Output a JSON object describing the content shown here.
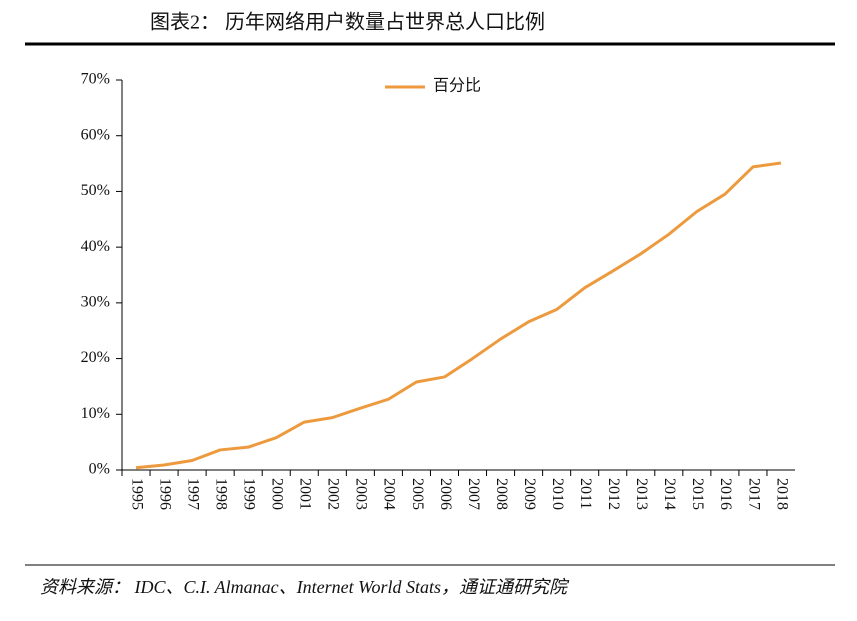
{
  "title": "图表2：  历年网络用户数量占世界总人口比例",
  "source": "资料来源：  IDC、C.I. Almanac、Internet World Stats，通证通研究院",
  "chart_data": {
    "type": "line",
    "categories": [
      "1995",
      "1996",
      "1997",
      "1998",
      "1999",
      "2000",
      "2001",
      "2002",
      "2003",
      "2004",
      "2005",
      "2006",
      "2007",
      "2008",
      "2009",
      "2010",
      "2011",
      "2012",
      "2013",
      "2014",
      "2015",
      "2016",
      "2017",
      "2018"
    ],
    "series": [
      {
        "name": "百分比",
        "color": "#ed9a3f",
        "values": [
          0.4,
          0.9,
          1.7,
          3.6,
          4.1,
          5.8,
          8.6,
          9.4,
          11.1,
          12.7,
          15.8,
          16.7,
          20.0,
          23.5,
          26.6,
          28.8,
          32.7,
          35.7,
          38.8,
          42.3,
          46.4,
          49.5,
          54.4,
          55.1
        ]
      }
    ],
    "ylim": [
      0,
      70
    ],
    "yticks": [
      {
        "value": 0,
        "label": "0%"
      },
      {
        "value": 10,
        "label": "10%"
      },
      {
        "value": 20,
        "label": "20%"
      },
      {
        "value": 30,
        "label": "30%"
      },
      {
        "value": 40,
        "label": "40%"
      },
      {
        "value": 50,
        "label": "50%"
      },
      {
        "value": 60,
        "label": "60%"
      },
      {
        "value": 70,
        "label": "70%"
      }
    ],
    "legend": "top"
  }
}
